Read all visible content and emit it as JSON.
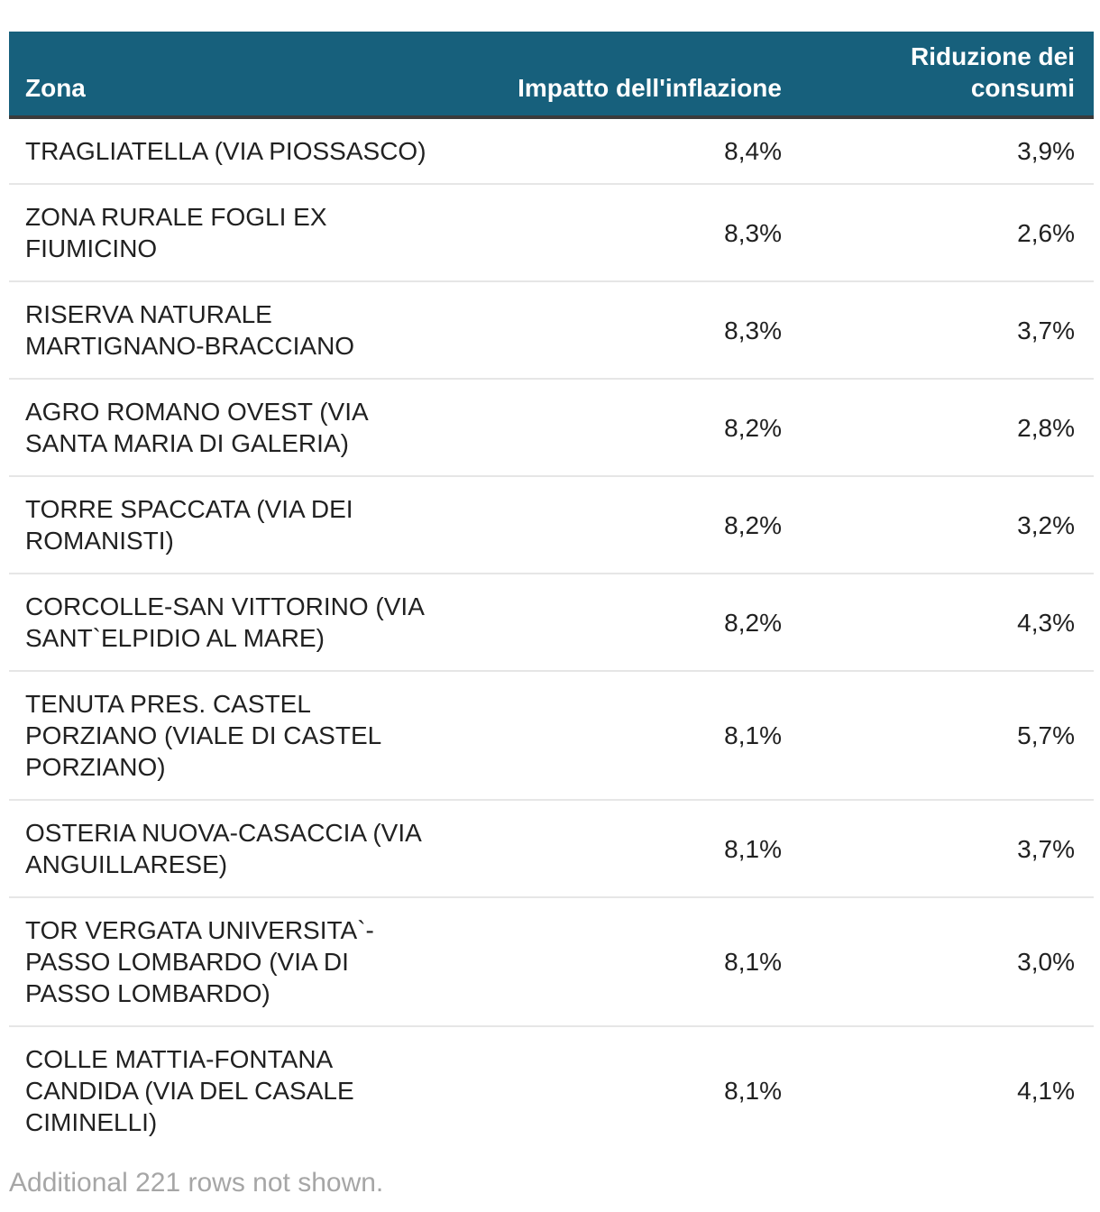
{
  "chart_data": {
    "type": "table",
    "columns": [
      "Zona",
      "Impatto dell'inflazione",
      "Riduzione dei consumi"
    ],
    "column_align": [
      "left",
      "right",
      "right"
    ],
    "rows": [
      [
        "TRAGLIATELLA (VIA PIOSSASCO)",
        "8,4%",
        "3,9%"
      ],
      [
        "ZONA RURALE FOGLI EX FIUMICINO",
        "8,3%",
        "2,6%"
      ],
      [
        "RISERVA NATURALE MARTIGNANO-BRACCIANO",
        "8,3%",
        "3,7%"
      ],
      [
        "AGRO ROMANO OVEST (VIA SANTA MARIA DI GALERIA)",
        "8,2%",
        "2,8%"
      ],
      [
        "TORRE SPACCATA (VIA DEI ROMANISTI)",
        "8,2%",
        "3,2%"
      ],
      [
        "CORCOLLE-SAN VITTORINO (VIA SANT`ELPIDIO AL MARE)",
        "8,2%",
        "4,3%"
      ],
      [
        "TENUTA PRES. CASTEL PORZIANO (VIALE DI CASTEL PORZIANO)",
        "8,1%",
        "5,7%"
      ],
      [
        "OSTERIA NUOVA-CASACCIA (VIA ANGUILLARESE)",
        "8,1%",
        "3,7%"
      ],
      [
        "TOR VERGATA UNIVERSITA`-PASSO LOMBARDO (VIA DI PASSO LOMBARDO)",
        "8,1%",
        "3,0%"
      ],
      [
        "COLLE MATTIA-FONTANA CANDIDA (VIA DEL CASALE CIMINELLI)",
        "8,1%",
        "4,1%"
      ]
    ],
    "impatto_values_pct": [
      8.4,
      8.3,
      8.3,
      8.2,
      8.2,
      8.2,
      8.1,
      8.1,
      8.1,
      8.1
    ],
    "riduzione_values_pct": [
      3.9,
      2.6,
      3.7,
      2.8,
      3.2,
      4.3,
      5.7,
      3.7,
      3.0,
      4.1
    ],
    "footer_note": "Additional 221 rows not shown.",
    "hidden_rows_count": 221,
    "layout": {
      "header_position": "top",
      "grid": "horizontal-separators-only",
      "decimal_separator": ","
    }
  },
  "colors": {
    "header_bg": "#17607C",
    "header_text": "#FFFFFF",
    "header_border_bottom": "#3B3B3B",
    "row_text": "#212121",
    "row_separator": "#E6E6E6",
    "footer_text": "#A6A6A6",
    "background": "#FFFFFF"
  }
}
